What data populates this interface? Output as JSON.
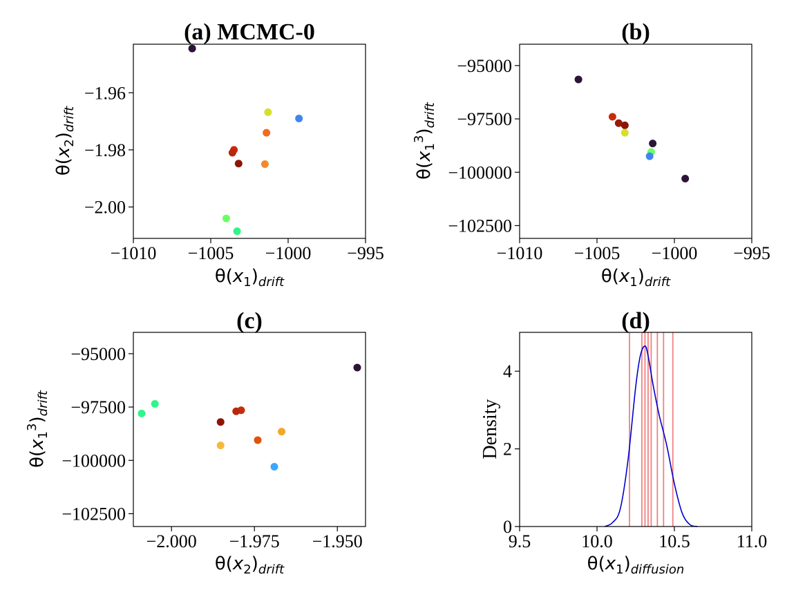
{
  "chart_data": [
    {
      "id": "a",
      "type": "scatter",
      "title": "(a) MCMC-0",
      "xlabel": "θ(x_1)_drift",
      "ylabel": "θ(x_2)_drift",
      "xlim": [
        -1010,
        -995
      ],
      "ylim": [
        -2.011,
        -1.943
      ],
      "xticks": [
        -1010,
        -1005,
        -1000,
        -995
      ],
      "xtick_labels": [
        "−1010",
        "−1005",
        "−1000",
        "−995"
      ],
      "yticks": [
        -2.0,
        -1.98,
        -1.96
      ],
      "ytick_labels": [
        "−2.00",
        "−1.98",
        "−1.96"
      ],
      "points": [
        {
          "x": -1006.2,
          "y": -1.9445,
          "color": "#2d1437"
        },
        {
          "x": -1001.3,
          "y": -1.9668,
          "color": "#d4e02a"
        },
        {
          "x": -999.3,
          "y": -1.969,
          "color": "#4186f0"
        },
        {
          "x": -1001.4,
          "y": -1.974,
          "color": "#f26a1e"
        },
        {
          "x": -1003.5,
          "y": -1.98,
          "color": "#c92c0c"
        },
        {
          "x": -1003.6,
          "y": -1.981,
          "color": "#b8280a"
        },
        {
          "x": -1003.2,
          "y": -1.9848,
          "color": "#8e1408"
        },
        {
          "x": -1001.5,
          "y": -1.985,
          "color": "#f5892a"
        },
        {
          "x": -1004.0,
          "y": -2.004,
          "color": "#6cff62"
        },
        {
          "x": -1003.3,
          "y": -2.0085,
          "color": "#32f58a"
        }
      ]
    },
    {
      "id": "b",
      "type": "scatter",
      "title": "(b)",
      "xlabel": "θ(x_1)_drift",
      "ylabel": "θ(x_1^3)_drift",
      "xlim": [
        -1010,
        -995
      ],
      "ylim": [
        -103100,
        -94000
      ],
      "xticks": [
        -1010,
        -1005,
        -1000,
        -995
      ],
      "xtick_labels": [
        "−1010",
        "−1005",
        "−1000",
        "−995"
      ],
      "yticks": [
        -102500,
        -100000,
        -97500,
        -95000
      ],
      "ytick_labels": [
        "−102500",
        "−100000",
        "−97500",
        "−95000"
      ],
      "points": [
        {
          "x": -1006.2,
          "y": -95650,
          "color": "#2d1437"
        },
        {
          "x": -1004.0,
          "y": -97400,
          "color": "#c92c0c"
        },
        {
          "x": -1003.6,
          "y": -97700,
          "color": "#9a1a08"
        },
        {
          "x": -1003.2,
          "y": -97800,
          "color": "#8e1408"
        },
        {
          "x": -1003.2,
          "y": -98150,
          "color": "#d4e02a"
        },
        {
          "x": -1001.4,
          "y": -98650,
          "color": "#2d1437"
        },
        {
          "x": -1001.5,
          "y": -99050,
          "color": "#6cff62"
        },
        {
          "x": -1001.6,
          "y": -99250,
          "color": "#4186f0"
        },
        {
          "x": -999.3,
          "y": -100300,
          "color": "#2d1437"
        }
      ]
    },
    {
      "id": "c",
      "type": "scatter",
      "title": "(c)",
      "xlabel": "θ(x_2)_drift",
      "ylabel": "θ(x_1^3)_drift",
      "xlim": [
        -2.0115,
        -1.9415
      ],
      "ylim": [
        -103100,
        -94000
      ],
      "xticks": [
        -2.0,
        -1.975,
        -1.95
      ],
      "xtick_labels": [
        "−2.000",
        "−1.975",
        "−1.950"
      ],
      "yticks": [
        -102500,
        -100000,
        -97500,
        -95000
      ],
      "ytick_labels": [
        "−102500",
        "−100000",
        "−97500",
        "−95000"
      ],
      "points": [
        {
          "x": -1.944,
          "y": -95650,
          "color": "#2d1437"
        },
        {
          "x": -2.005,
          "y": -97350,
          "color": "#32f58a"
        },
        {
          "x": -2.009,
          "y": -97800,
          "color": "#32f58a"
        },
        {
          "x": -1.979,
          "y": -97650,
          "color": "#c92c0c"
        },
        {
          "x": -1.9805,
          "y": -97700,
          "color": "#b8280a"
        },
        {
          "x": -1.9852,
          "y": -98200,
          "color": "#8e1408"
        },
        {
          "x": -1.974,
          "y": -99050,
          "color": "#e0520e"
        },
        {
          "x": -1.9668,
          "y": -98650,
          "color": "#f5a62a"
        },
        {
          "x": -1.9852,
          "y": -99300,
          "color": "#f5b83a"
        },
        {
          "x": -1.969,
          "y": -100300,
          "color": "#3fa6ff"
        }
      ]
    },
    {
      "id": "d",
      "type": "line",
      "title": "(d)",
      "xlabel": "θ(x_1)_diffusion",
      "ylabel": "Density",
      "xlim": [
        9.5,
        11.0
      ],
      "ylim": [
        0,
        5.0
      ],
      "xticks": [
        9.5,
        10.0,
        10.5,
        11.0
      ],
      "xtick_labels": [
        "9.5",
        "10.0",
        "10.5",
        "11.0"
      ],
      "yticks": [
        0,
        2,
        4
      ],
      "ytick_labels": [
        "0",
        "2",
        "4"
      ],
      "density_curve": {
        "color": "#0000cc",
        "x": [
          10.05,
          10.1,
          10.15,
          10.2,
          10.25,
          10.28,
          10.31,
          10.33,
          10.36,
          10.4,
          10.45,
          10.5,
          10.55,
          10.6,
          10.65
        ],
        "y": [
          0.0,
          0.1,
          0.45,
          1.7,
          3.6,
          4.4,
          4.65,
          4.4,
          3.7,
          2.9,
          2.1,
          1.1,
          0.35,
          0.05,
          0.0
        ]
      },
      "vlines": {
        "color": "#f08080",
        "x": [
          10.21,
          10.29,
          10.31,
          10.33,
          10.35,
          10.39,
          10.43,
          10.49
        ]
      }
    }
  ]
}
